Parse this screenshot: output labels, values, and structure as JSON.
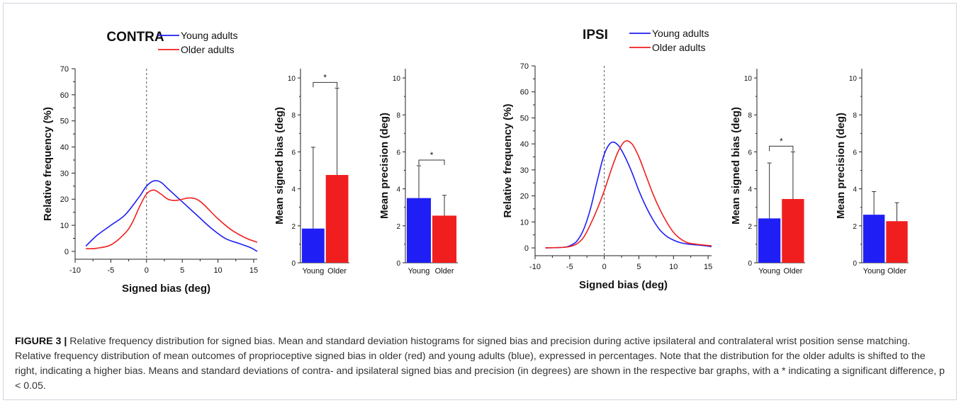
{
  "caption": {
    "label": "FIGURE 3 |",
    "text": "Relative frequency distribution for signed bias. Mean and standard deviation histograms for signed bias and precision during active ipsilateral and contralateral wrist position sense matching. Relative frequency distribution of mean outcomes of proprioceptive signed bias in older (red) and young adults (blue), expressed in percentages. Note that the distribution for the older adults is shifted to the right, indicating a higher bias. Means and standard deviations of contra- and ipsilateral signed bias and precision (in degrees) are shown in the respective bar graphs, with a * indicating a significant difference, p < 0.05."
  },
  "colors": {
    "young": "#1f1ff5",
    "older": "#f01e1e",
    "axis": "#222222",
    "guide": "#555555"
  },
  "chart_data": [
    {
      "id": "contra-distribution",
      "type": "line",
      "title": "CONTRA",
      "xlabel": "Signed bias (deg)",
      "ylabel": "Relative frequency (%)",
      "xlim": [
        -10,
        15.5
      ],
      "ylim": [
        -3,
        70
      ],
      "xticks": [
        -10,
        -5,
        0,
        5,
        10,
        15
      ],
      "xtick_labels": [
        "-10",
        "-5",
        "0",
        "5",
        "10",
        "15"
      ],
      "yticks": [
        0,
        10,
        20,
        30,
        40,
        50,
        60,
        70
      ],
      "ytick_labels": [
        "0",
        "10",
        "20",
        "30",
        "40",
        "50",
        "60",
        "70"
      ],
      "vline": 0,
      "legend": "top",
      "series": [
        {
          "name": "Young adults",
          "key": "young",
          "x": [
            -8.5,
            -7,
            -5,
            -3,
            -1,
            0,
            1,
            2,
            3,
            5,
            7,
            9,
            11,
            13,
            14.5,
            15.5
          ],
          "y": [
            2,
            6,
            10,
            14,
            21,
            25,
            27,
            26.5,
            24,
            19,
            14,
            9,
            5,
            3,
            1.5,
            0
          ]
        },
        {
          "name": "Older adults",
          "key": "older",
          "x": [
            -8.5,
            -7,
            -5,
            -3,
            -2,
            -1,
            0,
            1,
            2,
            3,
            4,
            5,
            6,
            7,
            8,
            10,
            12,
            14,
            15.5
          ],
          "y": [
            1,
            1.2,
            2.5,
            7,
            11,
            17,
            22,
            23.5,
            22,
            20,
            19.5,
            20,
            20.5,
            20,
            18,
            12.5,
            8,
            5,
            3.5
          ]
        }
      ]
    },
    {
      "id": "contra-signed-bias",
      "type": "bar",
      "ylabel": "Mean signed bias (deg)",
      "categories": [
        "Young",
        "Older"
      ],
      "values": [
        1.85,
        4.75
      ],
      "errors": [
        4.4,
        4.7
      ],
      "ylim": [
        0,
        10.5
      ],
      "yticks": [
        0,
        2,
        4,
        6,
        8,
        10
      ],
      "ytick_labels": [
        "0",
        "2",
        "4",
        "6",
        "8",
        "10"
      ],
      "significance": "*"
    },
    {
      "id": "contra-precision",
      "type": "bar",
      "ylabel": "Mean precision (deg)",
      "categories": [
        "Young",
        "Older"
      ],
      "values": [
        3.5,
        2.55
      ],
      "errors": [
        1.75,
        1.1
      ],
      "ylim": [
        0,
        10.5
      ],
      "yticks": [
        0,
        2,
        4,
        6,
        8,
        10
      ],
      "ytick_labels": [
        "0",
        "2",
        "4",
        "6",
        "8",
        "10"
      ],
      "significance": "*"
    },
    {
      "id": "ipsi-distribution",
      "type": "line",
      "title": "IPSI",
      "xlabel": "Signed bias (deg)",
      "ylabel": "Relative frequency (%)",
      "xlim": [
        -10,
        15.5
      ],
      "ylim": [
        -3,
        70
      ],
      "xticks": [
        -10,
        -5,
        0,
        5,
        10,
        15
      ],
      "xtick_labels": [
        "-10",
        "-5",
        "0",
        "5",
        "10",
        "15"
      ],
      "yticks": [
        0,
        10,
        20,
        30,
        40,
        50,
        60,
        70
      ],
      "ytick_labels": [
        "0",
        "10",
        "20",
        "30",
        "40",
        "50",
        "60",
        "70"
      ],
      "vline": 0,
      "legend": "top-right",
      "series": [
        {
          "name": "Young adults",
          "key": "young",
          "x": [
            -8.5,
            -6,
            -5,
            -4,
            -3,
            -2,
            -1,
            0,
            1,
            2,
            3,
            4,
            5,
            6,
            7,
            8,
            9,
            10,
            11,
            12,
            13,
            14,
            15.5
          ],
          "y": [
            0,
            0.2,
            0.8,
            2.5,
            7,
            15,
            26,
            36,
            40.5,
            39.5,
            35,
            29,
            22,
            16,
            11,
            7,
            4.5,
            3,
            2,
            1.5,
            1.2,
            1,
            0.5
          ]
        },
        {
          "name": "Older adults",
          "key": "older",
          "x": [
            -8.5,
            -6,
            -5,
            -4,
            -3,
            -2,
            -1,
            0,
            1,
            2,
            3,
            4,
            5,
            6,
            7,
            8,
            9,
            10,
            11,
            12,
            13,
            14,
            15.5
          ],
          "y": [
            0,
            0.2,
            0.5,
            1.5,
            4,
            9,
            15,
            22,
            30,
            37,
            41,
            40,
            35,
            28,
            21,
            15,
            10,
            6,
            3.5,
            2,
            1.5,
            1.2,
            0.8
          ]
        }
      ]
    },
    {
      "id": "ipsi-signed-bias",
      "type": "bar",
      "ylabel": "Mean signed bias (deg)",
      "categories": [
        "Young",
        "Older"
      ],
      "values": [
        2.4,
        3.45
      ],
      "errors": [
        3.0,
        2.55
      ],
      "ylim": [
        0,
        10.5
      ],
      "yticks": [
        0,
        2,
        4,
        6,
        8,
        10
      ],
      "ytick_labels": [
        "0",
        "2",
        "4",
        "6",
        "8",
        "10"
      ],
      "significance": "*"
    },
    {
      "id": "ipsi-precision",
      "type": "bar",
      "ylabel": "Mean precision (deg)",
      "categories": [
        "Young",
        "Older"
      ],
      "values": [
        2.6,
        2.25
      ],
      "errors": [
        1.25,
        1.0
      ],
      "ylim": [
        0,
        10.5
      ],
      "yticks": [
        0,
        2,
        4,
        6,
        8,
        10
      ],
      "ytick_labels": [
        "0",
        "2",
        "4",
        "6",
        "8",
        "10"
      ],
      "significance": ""
    }
  ]
}
